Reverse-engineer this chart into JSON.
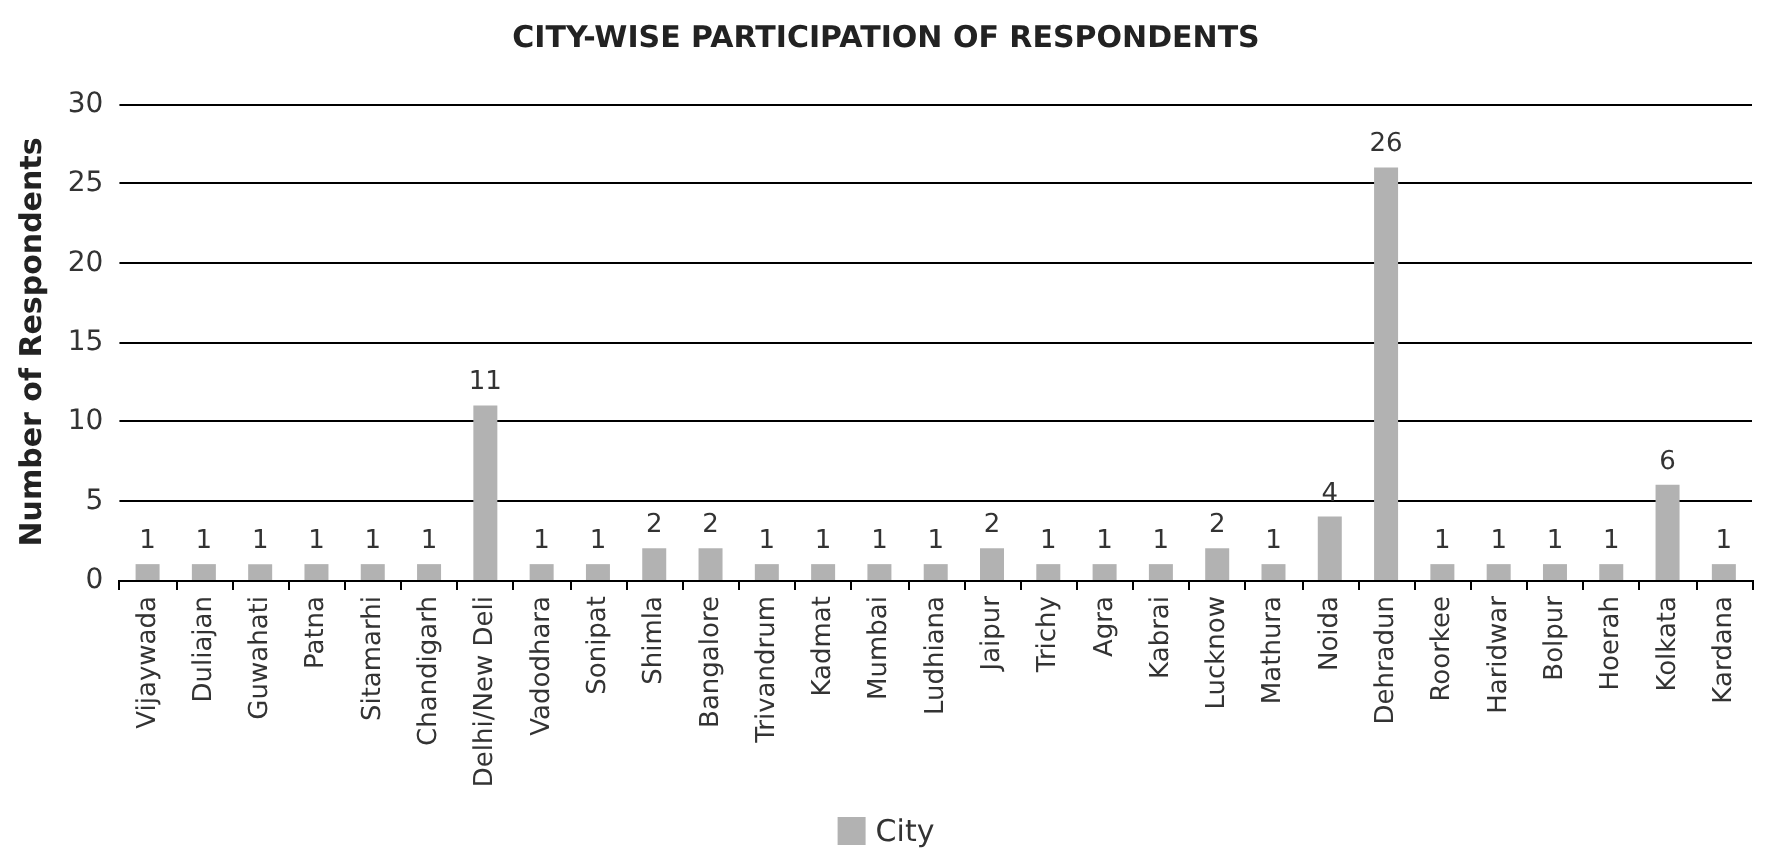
{
  "chart_data": {
    "type": "bar",
    "title": "CITY-WISE PARTICIPATION OF RESPONDENTS",
    "ylabel": "Number of Respondents",
    "categories": [
      "Vijaywada",
      "Duliajan",
      "Guwahati",
      "Patna",
      "Sitamarhi",
      "Chandigarh",
      "Delhi/New Deli",
      "Vadodhara",
      "Sonipat",
      "Shimla",
      "Bangalore",
      "Trivandrum",
      "Kadmat",
      "Mumbai",
      "Ludhiana",
      "Jaipur",
      "Trichy",
      "Agra",
      "Kabrai",
      "Lucknow",
      "Mathura",
      "Noida",
      "Dehradun",
      "Roorkee",
      "Haridwar",
      "Bolpur",
      "Hoerah",
      "Kolkata",
      "Kardana"
    ],
    "series": [
      {
        "name": "City",
        "color": "#b2b2b2",
        "values": [
          1,
          1,
          1,
          1,
          1,
          1,
          11,
          1,
          1,
          2,
          2,
          1,
          1,
          1,
          1,
          2,
          1,
          1,
          1,
          2,
          1,
          4,
          26,
          1,
          1,
          1,
          1,
          6,
          1
        ]
      }
    ],
    "ylim": [
      0,
      30
    ],
    "yticks": [
      0,
      5,
      10,
      15,
      20,
      25,
      30
    ],
    "grid": "y",
    "legend": "bottom",
    "data_labels": true
  }
}
